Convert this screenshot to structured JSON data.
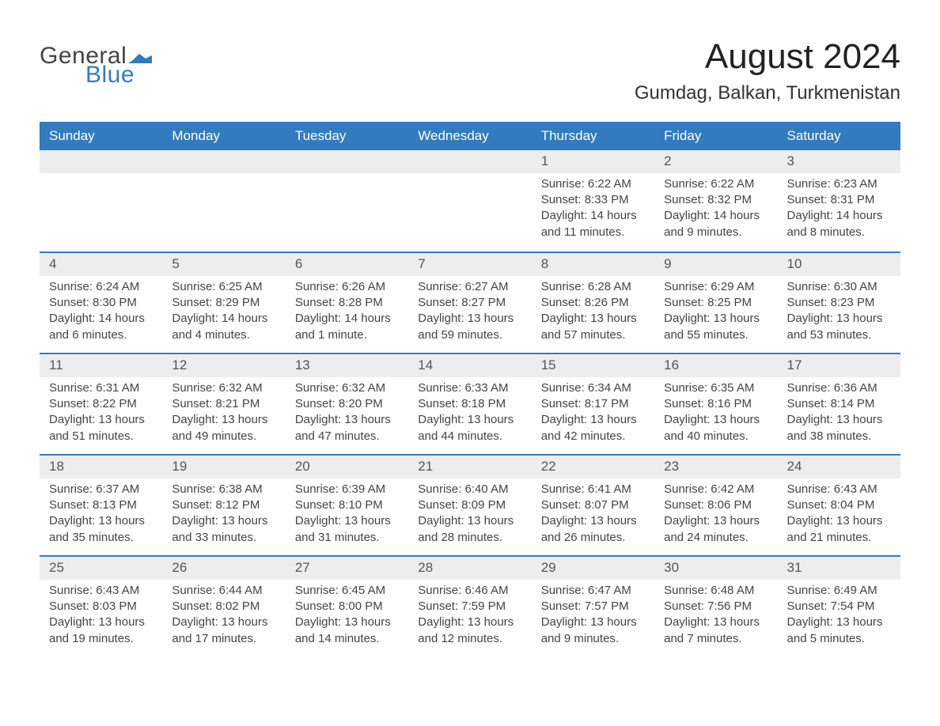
{
  "brand": {
    "general": "General",
    "blue": "Blue",
    "flag_color": "#327bbf"
  },
  "title": "August 2024",
  "location": "Gumdag, Balkan, Turkmenistan",
  "header_bg": "#327bbf",
  "header_fg": "#ffffff",
  "daynum_bg": "#ededed",
  "text_color": "#444444",
  "weekdays": [
    "Sunday",
    "Monday",
    "Tuesday",
    "Wednesday",
    "Thursday",
    "Friday",
    "Saturday"
  ],
  "weeks": [
    [
      null,
      null,
      null,
      null,
      {
        "n": "1",
        "sunrise": "Sunrise: 6:22 AM",
        "sunset": "Sunset: 8:33 PM",
        "day1": "Daylight: 14 hours",
        "day2": "and 11 minutes."
      },
      {
        "n": "2",
        "sunrise": "Sunrise: 6:22 AM",
        "sunset": "Sunset: 8:32 PM",
        "day1": "Daylight: 14 hours",
        "day2": "and 9 minutes."
      },
      {
        "n": "3",
        "sunrise": "Sunrise: 6:23 AM",
        "sunset": "Sunset: 8:31 PM",
        "day1": "Daylight: 14 hours",
        "day2": "and 8 minutes."
      }
    ],
    [
      {
        "n": "4",
        "sunrise": "Sunrise: 6:24 AM",
        "sunset": "Sunset: 8:30 PM",
        "day1": "Daylight: 14 hours",
        "day2": "and 6 minutes."
      },
      {
        "n": "5",
        "sunrise": "Sunrise: 6:25 AM",
        "sunset": "Sunset: 8:29 PM",
        "day1": "Daylight: 14 hours",
        "day2": "and 4 minutes."
      },
      {
        "n": "6",
        "sunrise": "Sunrise: 6:26 AM",
        "sunset": "Sunset: 8:28 PM",
        "day1": "Daylight: 14 hours",
        "day2": "and 1 minute."
      },
      {
        "n": "7",
        "sunrise": "Sunrise: 6:27 AM",
        "sunset": "Sunset: 8:27 PM",
        "day1": "Daylight: 13 hours",
        "day2": "and 59 minutes."
      },
      {
        "n": "8",
        "sunrise": "Sunrise: 6:28 AM",
        "sunset": "Sunset: 8:26 PM",
        "day1": "Daylight: 13 hours",
        "day2": "and 57 minutes."
      },
      {
        "n": "9",
        "sunrise": "Sunrise: 6:29 AM",
        "sunset": "Sunset: 8:25 PM",
        "day1": "Daylight: 13 hours",
        "day2": "and 55 minutes."
      },
      {
        "n": "10",
        "sunrise": "Sunrise: 6:30 AM",
        "sunset": "Sunset: 8:23 PM",
        "day1": "Daylight: 13 hours",
        "day2": "and 53 minutes."
      }
    ],
    [
      {
        "n": "11",
        "sunrise": "Sunrise: 6:31 AM",
        "sunset": "Sunset: 8:22 PM",
        "day1": "Daylight: 13 hours",
        "day2": "and 51 minutes."
      },
      {
        "n": "12",
        "sunrise": "Sunrise: 6:32 AM",
        "sunset": "Sunset: 8:21 PM",
        "day1": "Daylight: 13 hours",
        "day2": "and 49 minutes."
      },
      {
        "n": "13",
        "sunrise": "Sunrise: 6:32 AM",
        "sunset": "Sunset: 8:20 PM",
        "day1": "Daylight: 13 hours",
        "day2": "and 47 minutes."
      },
      {
        "n": "14",
        "sunrise": "Sunrise: 6:33 AM",
        "sunset": "Sunset: 8:18 PM",
        "day1": "Daylight: 13 hours",
        "day2": "and 44 minutes."
      },
      {
        "n": "15",
        "sunrise": "Sunrise: 6:34 AM",
        "sunset": "Sunset: 8:17 PM",
        "day1": "Daylight: 13 hours",
        "day2": "and 42 minutes."
      },
      {
        "n": "16",
        "sunrise": "Sunrise: 6:35 AM",
        "sunset": "Sunset: 8:16 PM",
        "day1": "Daylight: 13 hours",
        "day2": "and 40 minutes."
      },
      {
        "n": "17",
        "sunrise": "Sunrise: 6:36 AM",
        "sunset": "Sunset: 8:14 PM",
        "day1": "Daylight: 13 hours",
        "day2": "and 38 minutes."
      }
    ],
    [
      {
        "n": "18",
        "sunrise": "Sunrise: 6:37 AM",
        "sunset": "Sunset: 8:13 PM",
        "day1": "Daylight: 13 hours",
        "day2": "and 35 minutes."
      },
      {
        "n": "19",
        "sunrise": "Sunrise: 6:38 AM",
        "sunset": "Sunset: 8:12 PM",
        "day1": "Daylight: 13 hours",
        "day2": "and 33 minutes."
      },
      {
        "n": "20",
        "sunrise": "Sunrise: 6:39 AM",
        "sunset": "Sunset: 8:10 PM",
        "day1": "Daylight: 13 hours",
        "day2": "and 31 minutes."
      },
      {
        "n": "21",
        "sunrise": "Sunrise: 6:40 AM",
        "sunset": "Sunset: 8:09 PM",
        "day1": "Daylight: 13 hours",
        "day2": "and 28 minutes."
      },
      {
        "n": "22",
        "sunrise": "Sunrise: 6:41 AM",
        "sunset": "Sunset: 8:07 PM",
        "day1": "Daylight: 13 hours",
        "day2": "and 26 minutes."
      },
      {
        "n": "23",
        "sunrise": "Sunrise: 6:42 AM",
        "sunset": "Sunset: 8:06 PM",
        "day1": "Daylight: 13 hours",
        "day2": "and 24 minutes."
      },
      {
        "n": "24",
        "sunrise": "Sunrise: 6:43 AM",
        "sunset": "Sunset: 8:04 PM",
        "day1": "Daylight: 13 hours",
        "day2": "and 21 minutes."
      }
    ],
    [
      {
        "n": "25",
        "sunrise": "Sunrise: 6:43 AM",
        "sunset": "Sunset: 8:03 PM",
        "day1": "Daylight: 13 hours",
        "day2": "and 19 minutes."
      },
      {
        "n": "26",
        "sunrise": "Sunrise: 6:44 AM",
        "sunset": "Sunset: 8:02 PM",
        "day1": "Daylight: 13 hours",
        "day2": "and 17 minutes."
      },
      {
        "n": "27",
        "sunrise": "Sunrise: 6:45 AM",
        "sunset": "Sunset: 8:00 PM",
        "day1": "Daylight: 13 hours",
        "day2": "and 14 minutes."
      },
      {
        "n": "28",
        "sunrise": "Sunrise: 6:46 AM",
        "sunset": "Sunset: 7:59 PM",
        "day1": "Daylight: 13 hours",
        "day2": "and 12 minutes."
      },
      {
        "n": "29",
        "sunrise": "Sunrise: 6:47 AM",
        "sunset": "Sunset: 7:57 PM",
        "day1": "Daylight: 13 hours",
        "day2": "and 9 minutes."
      },
      {
        "n": "30",
        "sunrise": "Sunrise: 6:48 AM",
        "sunset": "Sunset: 7:56 PM",
        "day1": "Daylight: 13 hours",
        "day2": "and 7 minutes."
      },
      {
        "n": "31",
        "sunrise": "Sunrise: 6:49 AM",
        "sunset": "Sunset: 7:54 PM",
        "day1": "Daylight: 13 hours",
        "day2": "and 5 minutes."
      }
    ]
  ]
}
